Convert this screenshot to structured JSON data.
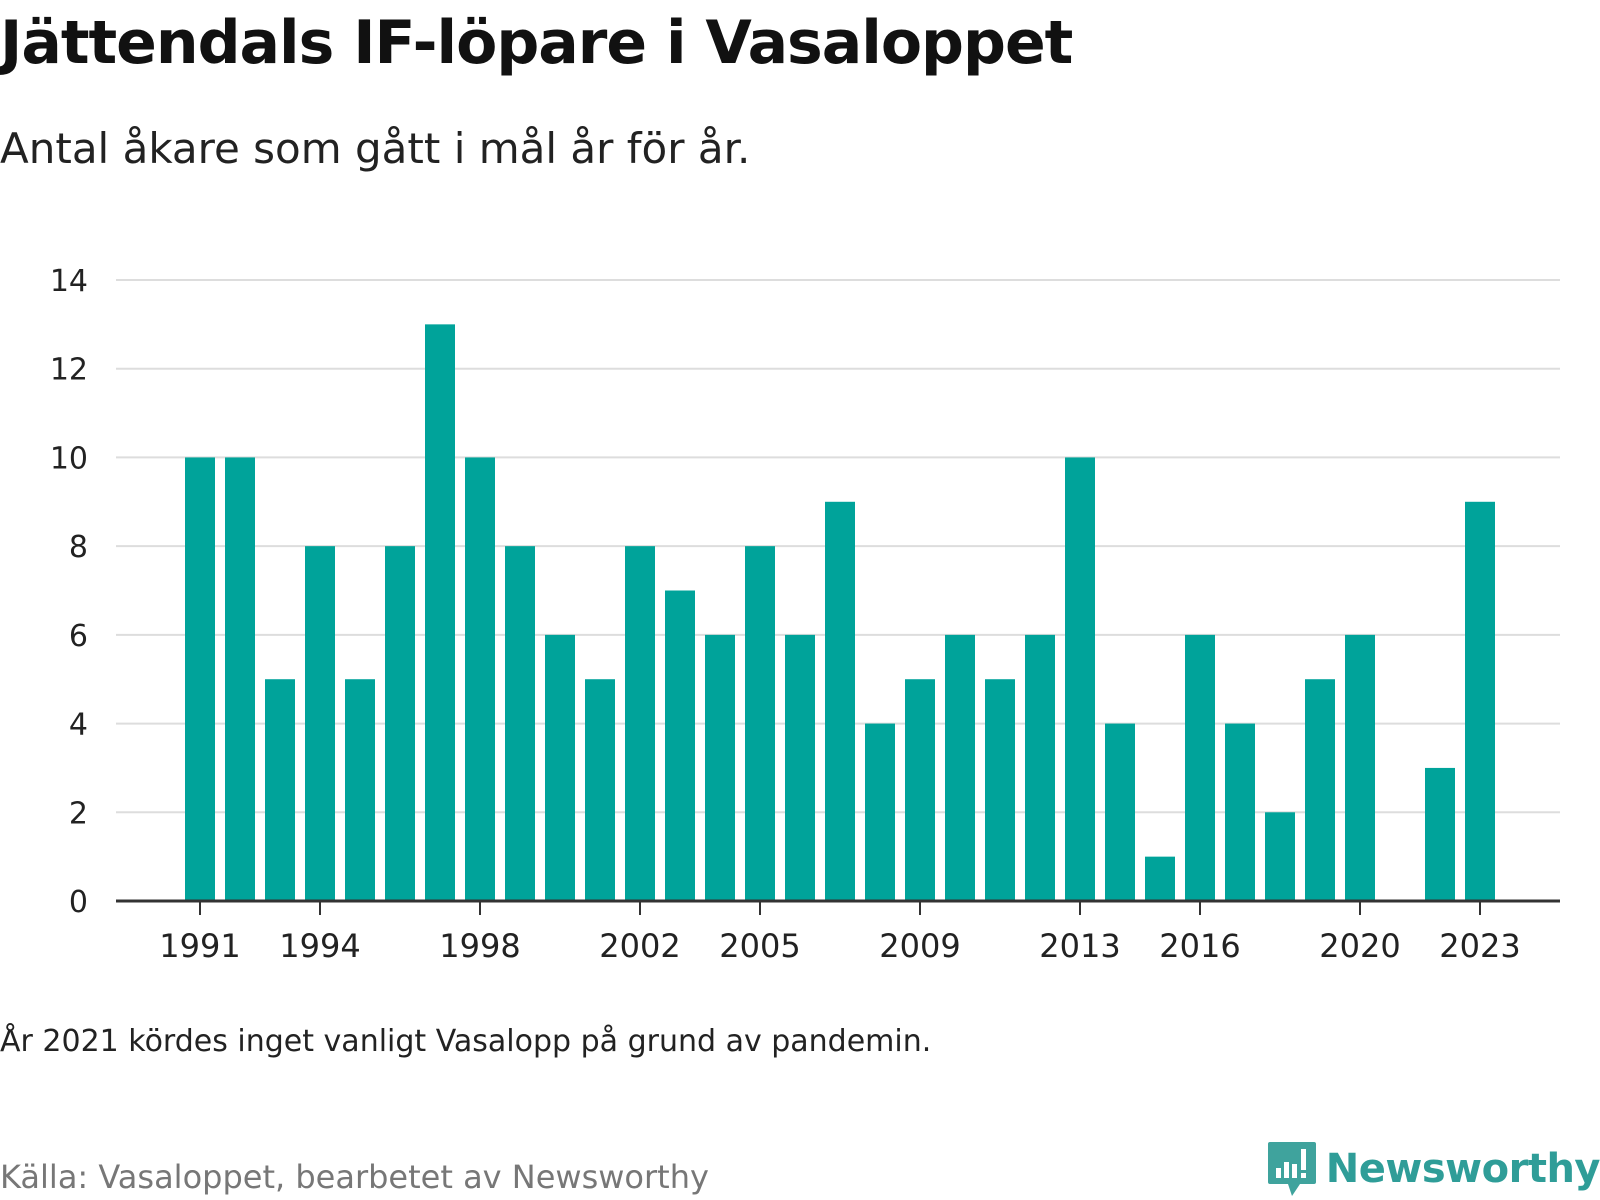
{
  "chart_data": {
    "type": "bar",
    "title": "Jättendals IF-löpare i Vasaloppet",
    "subtitle": "Antal åkare som gått i mål år för år.",
    "xlabel": "",
    "ylabel": "",
    "x": [
      1991,
      1992,
      1993,
      1994,
      1995,
      1996,
      1997,
      1998,
      1999,
      2000,
      2001,
      2002,
      2003,
      2004,
      2005,
      2006,
      2007,
      2008,
      2009,
      2010,
      2011,
      2012,
      2013,
      2014,
      2015,
      2016,
      2017,
      2018,
      2019,
      2020,
      2021,
      2022,
      2023
    ],
    "values": [
      10,
      10,
      5,
      8,
      5,
      8,
      13,
      10,
      8,
      6,
      5,
      8,
      7,
      6,
      8,
      6,
      9,
      4,
      5,
      6,
      5,
      6,
      10,
      4,
      1,
      6,
      4,
      2,
      5,
      6,
      null,
      3,
      9
    ],
    "x_tick_labels": [
      "1991",
      "1994",
      "1998",
      "2002",
      "2005",
      "2009",
      "2013",
      "2016",
      "2020",
      "2023"
    ],
    "y_ticks": [
      0,
      2,
      4,
      6,
      8,
      10,
      12,
      14
    ],
    "ylim": [
      0,
      14
    ],
    "grid": "horizontal",
    "bar_color": "#00a39a",
    "note": "År 2021 kördes inget vanligt Vasalopp på grund av pandemin.",
    "source": "Källa: Vasaloppet, bearbetet av Newsworthy"
  },
  "branding": {
    "logo_text": "Newsworthy",
    "logo_icon": "newsworthy-chart-bubble-icon",
    "logo_color": "#2f9d98"
  }
}
